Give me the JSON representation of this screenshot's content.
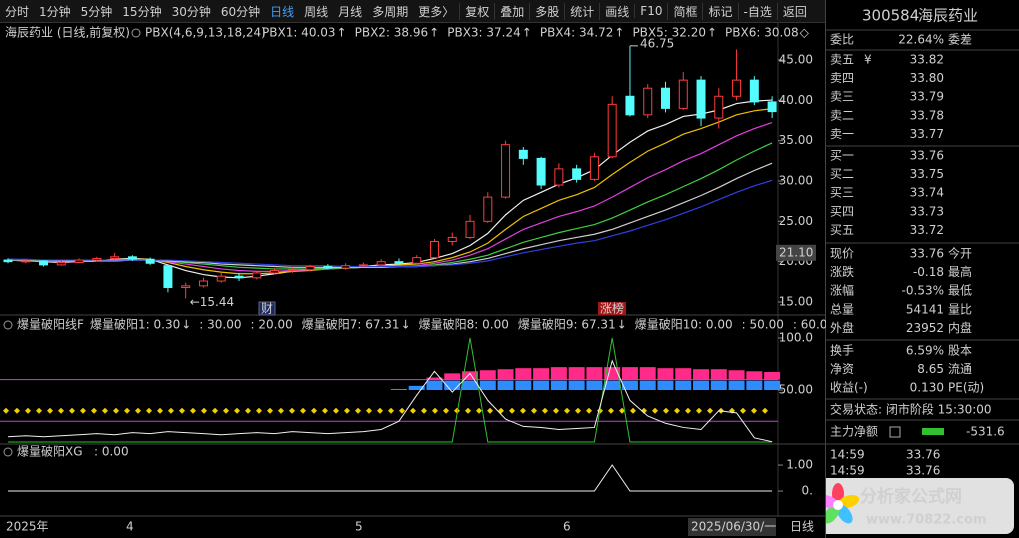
{
  "toolbar": {
    "left": [
      "分时",
      "1分钟",
      "5分钟",
      "15分钟",
      "30分钟",
      "60分钟",
      "日线",
      "周线",
      "月线",
      "多周期",
      "更多〉"
    ],
    "active": 6,
    "right": [
      "复权",
      "叠加",
      "多股",
      "统计",
      "画线",
      "F10",
      "简框",
      "标记",
      "-自选",
      "返回"
    ]
  },
  "main": {
    "title": "海辰药业 (日线,前复权)",
    "indicator": "PBX(4,6,9,13,18,24)",
    "legend": [
      {
        "text": "PBX1: 40.03",
        "arrow": "↑",
        "color": "#f0f0f0"
      },
      {
        "text": "PBX2: 38.96",
        "arrow": "↑",
        "color": "#f0c000"
      },
      {
        "text": "PBX3: 37.24",
        "arrow": "↑",
        "color": "#e040e0"
      },
      {
        "text": "PBX4: 34.72",
        "arrow": "↑",
        "color": "#40d040"
      },
      {
        "text": "PBX5: 32.20",
        "arrow": "↑",
        "color": "#d0d0d0"
      },
      {
        "text": "PBX6: 30.08",
        "arrow": "◇",
        "color": "#4050ff"
      }
    ],
    "ylim": [
      13.76,
      46.98
    ],
    "yticks": [
      {
        "value": 45,
        "label": "45.00"
      },
      {
        "value": 40,
        "label": "40.00"
      },
      {
        "value": 35,
        "label": "35.00"
      },
      {
        "value": 30,
        "label": "30.00"
      },
      {
        "value": 25,
        "label": "25.00"
      },
      {
        "value": 20,
        "label": "20.00"
      },
      {
        "value": 15,
        "label": "15.00"
      }
    ],
    "crosshair": {
      "value": 21.1,
      "label": "21.10"
    },
    "up_color": "#ff3c3c",
    "down_color": "#54fcfc",
    "candles": [
      [
        20.2,
        20.0,
        20.4,
        19.8
      ],
      [
        20.0,
        20.1,
        20.3,
        19.8
      ],
      [
        20.1,
        19.6,
        20.2,
        19.4
      ],
      [
        19.6,
        19.9,
        20.1,
        19.5
      ],
      [
        19.9,
        20.2,
        20.4,
        19.8
      ],
      [
        20.2,
        20.4,
        20.6,
        20.0
      ],
      [
        20.4,
        20.6,
        21.1,
        20.2
      ],
      [
        20.6,
        20.3,
        20.8,
        20.1
      ],
      [
        20.3,
        19.8,
        20.5,
        19.6
      ],
      [
        19.5,
        16.8,
        19.6,
        16.2
      ],
      [
        16.8,
        17.0,
        17.4,
        15.44
      ],
      [
        17.0,
        17.6,
        18.0,
        16.8
      ],
      [
        17.6,
        18.2,
        18.6,
        17.4
      ],
      [
        18.2,
        18.0,
        18.6,
        17.6
      ],
      [
        18.0,
        18.6,
        18.9,
        17.8
      ],
      [
        18.6,
        18.9,
        19.2,
        18.4
      ],
      [
        18.9,
        19.0,
        19.4,
        18.6
      ],
      [
        19.0,
        19.4,
        19.6,
        18.8
      ],
      [
        19.4,
        19.2,
        19.7,
        19.0
      ],
      [
        19.2,
        19.5,
        19.8,
        19.0
      ],
      [
        19.5,
        19.6,
        19.9,
        19.3
      ],
      [
        19.6,
        20.0,
        20.3,
        19.4
      ],
      [
        20.0,
        19.8,
        20.4,
        19.6
      ],
      [
        19.8,
        20.5,
        20.8,
        19.7
      ],
      [
        20.5,
        22.5,
        22.8,
        20.4
      ],
      [
        22.5,
        23.0,
        23.6,
        22.0
      ],
      [
        23.0,
        25.0,
        25.8,
        22.8
      ],
      [
        25.0,
        28.0,
        28.6,
        24.8
      ],
      [
        28.0,
        34.5,
        35.0,
        27.8
      ],
      [
        33.8,
        32.8,
        34.2,
        32.0
      ],
      [
        32.8,
        29.5,
        33.0,
        29.0
      ],
      [
        29.5,
        31.5,
        32.2,
        29.2
      ],
      [
        31.5,
        30.2,
        32.0,
        29.8
      ],
      [
        30.2,
        33.0,
        33.5,
        30.0
      ],
      [
        33.0,
        39.5,
        40.5,
        32.8
      ],
      [
        40.5,
        38.2,
        46.75,
        38.0
      ],
      [
        38.2,
        41.5,
        42.0,
        37.8
      ],
      [
        41.5,
        39.0,
        42.3,
        38.5
      ],
      [
        39.0,
        42.5,
        43.5,
        38.8
      ],
      [
        42.5,
        37.8,
        43.0,
        36.8
      ],
      [
        37.8,
        40.5,
        41.5,
        36.5
      ],
      [
        40.5,
        42.5,
        46.3,
        40.0
      ],
      [
        42.5,
        39.8,
        43.0,
        39.4
      ],
      [
        39.8,
        38.6,
        40.5,
        37.8
      ]
    ],
    "lines": [
      {
        "color": "#f0f0f0",
        "values": [
          20.2,
          20.1,
          20.0,
          19.9,
          20.0,
          20.1,
          20.3,
          20.4,
          20.3,
          19.6,
          18.9,
          18.4,
          18.1,
          18.0,
          18.2,
          18.5,
          18.8,
          19.0,
          19.2,
          19.3,
          19.4,
          19.6,
          19.7,
          19.9,
          20.4,
          21.0,
          22.0,
          23.5,
          25.8,
          27.6,
          28.6,
          29.6,
          30.4,
          31.4,
          33.2,
          34.8,
          36.2,
          37.0,
          38.0,
          38.3,
          38.8,
          39.6,
          39.9,
          40.03
        ]
      },
      {
        "color": "#f0c000",
        "values": [
          20.2,
          20.1,
          20.1,
          20.0,
          20.0,
          20.1,
          20.2,
          20.3,
          20.3,
          19.9,
          19.4,
          19.0,
          18.7,
          18.5,
          18.5,
          18.6,
          18.8,
          18.9,
          19.1,
          19.2,
          19.3,
          19.4,
          19.6,
          19.7,
          20.0,
          20.5,
          21.2,
          22.3,
          24.0,
          25.6,
          26.6,
          27.6,
          28.3,
          29.2,
          30.8,
          32.3,
          33.7,
          34.7,
          35.8,
          36.5,
          37.3,
          38.2,
          38.7,
          38.96
        ]
      },
      {
        "color": "#e040e0",
        "values": [
          20.2,
          20.1,
          20.1,
          20.0,
          20.0,
          20.1,
          20.2,
          20.2,
          20.2,
          20.0,
          19.7,
          19.4,
          19.1,
          18.9,
          18.8,
          18.8,
          18.9,
          19.0,
          19.1,
          19.2,
          19.3,
          19.3,
          19.4,
          19.5,
          19.8,
          20.2,
          20.8,
          21.6,
          22.8,
          24.0,
          24.8,
          25.6,
          26.2,
          26.9,
          28.0,
          29.2,
          30.4,
          31.4,
          32.5,
          33.4,
          34.5,
          35.6,
          36.5,
          37.24
        ]
      },
      {
        "color": "#40d040",
        "values": [
          20.2,
          20.2,
          20.1,
          20.1,
          20.0,
          20.1,
          20.1,
          20.2,
          20.2,
          20.1,
          19.9,
          19.7,
          19.5,
          19.3,
          19.2,
          19.1,
          19.1,
          19.1,
          19.2,
          19.2,
          19.3,
          19.3,
          19.4,
          19.4,
          19.6,
          19.9,
          20.3,
          20.8,
          21.6,
          22.4,
          23.0,
          23.6,
          24.1,
          24.6,
          25.4,
          26.4,
          27.4,
          28.3,
          29.3,
          30.3,
          31.4,
          32.6,
          33.7,
          34.72
        ]
      },
      {
        "color": "#d0d0d0",
        "values": [
          20.3,
          20.2,
          20.2,
          20.1,
          20.1,
          20.1,
          20.1,
          20.2,
          20.2,
          20.1,
          20.0,
          19.9,
          19.7,
          19.6,
          19.5,
          19.4,
          19.3,
          19.3,
          19.3,
          19.3,
          19.3,
          19.3,
          19.4,
          19.4,
          19.5,
          19.7,
          20.0,
          20.4,
          21.0,
          21.6,
          22.1,
          22.6,
          23.0,
          23.4,
          24.0,
          24.8,
          25.6,
          26.4,
          27.3,
          28.2,
          29.2,
          30.3,
          31.3,
          32.2
        ]
      },
      {
        "color": "#3040e0",
        "values": [
          20.3,
          20.3,
          20.2,
          20.2,
          20.2,
          20.2,
          20.2,
          20.2,
          20.2,
          20.2,
          20.1,
          20.0,
          19.9,
          19.8,
          19.7,
          19.6,
          19.5,
          19.5,
          19.5,
          19.4,
          19.4,
          19.4,
          19.4,
          19.4,
          19.5,
          19.6,
          19.8,
          20.1,
          20.6,
          21.1,
          21.5,
          21.9,
          22.3,
          22.6,
          23.2,
          23.8,
          24.5,
          25.2,
          26.0,
          26.8,
          27.7,
          28.6,
          29.4,
          30.08
        ]
      }
    ],
    "high_label": "46.75",
    "low_label": "←15.44",
    "markers": [
      "财",
      "涨榜"
    ]
  },
  "panel2": {
    "name": "爆量破阳线F",
    "legend": [
      {
        "text": "爆量破阳1: 0.30",
        "arrow": "↓",
        "color": "#f0f0f0"
      },
      {
        "text": ": 30.00",
        "color": "#f0c000"
      },
      {
        "text": ": 20.00",
        "color": "#e040e0"
      },
      {
        "text": "爆量破阳7: 67.31",
        "arrow": "↓",
        "color": "#40d040"
      },
      {
        "text": "爆量破阳8: 0.00",
        "color": "#3050ff"
      },
      {
        "text": "爆量破阳9: 67.31",
        "arrow": "↓",
        "color": "#ff3090"
      },
      {
        "text": "爆量破阳10: 0.00",
        "color": "#f0c000"
      },
      {
        "text": ": 50.00",
        "color": "#f0c000"
      },
      {
        "text": ": 60.00",
        "color": "#e040e0"
      }
    ],
    "ylim": [
      0,
      107.7
    ],
    "yticks": [
      {
        "value": 100,
        "label": "100.0"
      },
      {
        "value": 50,
        "label": "50.00"
      }
    ],
    "levels": {
      "diamonds": 30,
      "lower": 20,
      "blue_base": 50,
      "pink_base": 60
    },
    "line": [
      5,
      6,
      5,
      6,
      7,
      8,
      7,
      9,
      8,
      10,
      9,
      8,
      7,
      8,
      9,
      8,
      10,
      9,
      8,
      9,
      10,
      12,
      20,
      45,
      68,
      48,
      66,
      40,
      22,
      15,
      14,
      12,
      13,
      14,
      78,
      40,
      25,
      18,
      14,
      12,
      30,
      28,
      4,
      0.3
    ],
    "pink": [
      null,
      null,
      null,
      null,
      null,
      null,
      null,
      null,
      null,
      null,
      null,
      null,
      null,
      null,
      null,
      null,
      null,
      null,
      null,
      null,
      null,
      null,
      null,
      null,
      62,
      66,
      68,
      69,
      70,
      71,
      71,
      72,
      72,
      72,
      72,
      72,
      72,
      71,
      71,
      70,
      70,
      69,
      68,
      67.31
    ],
    "blue": [
      null,
      null,
      null,
      null,
      null,
      null,
      null,
      null,
      null,
      null,
      null,
      null,
      null,
      null,
      null,
      null,
      null,
      null,
      null,
      null,
      null,
      null,
      51,
      54,
      59,
      59,
      59,
      59,
      59,
      59,
      59,
      59,
      59,
      59,
      59,
      59,
      59,
      59,
      59,
      59,
      59,
      59,
      59,
      59
    ],
    "spikes": [
      0,
      0,
      0,
      0,
      0,
      0,
      0,
      0,
      0,
      0,
      0,
      0,
      0,
      0,
      0,
      0,
      0,
      0,
      0,
      0,
      0,
      0,
      0,
      0,
      0,
      0,
      100,
      0,
      0,
      0,
      0,
      0,
      0,
      0,
      100,
      0,
      0,
      0,
      0,
      0,
      0,
      0,
      0,
      0
    ]
  },
  "panel3": {
    "name": "爆量破阳XG",
    "value": ": 0.00",
    "ylim": [
      -0.92,
      1.27
    ],
    "yticks": [
      {
        "value": 1,
        "label": "1.00"
      },
      {
        "value": 0,
        "label": "0."
      }
    ],
    "values": [
      0,
      0,
      0,
      0,
      0,
      0,
      0,
      0,
      0,
      0,
      0,
      0,
      0,
      0,
      0,
      0,
      0,
      0,
      0,
      0,
      0,
      0,
      0,
      0,
      0,
      0,
      0,
      0,
      0,
      0,
      0,
      0,
      0,
      0,
      1,
      0,
      0,
      0,
      0,
      0,
      0,
      0,
      0,
      0
    ]
  },
  "time_axis": [
    "2025年",
    "4",
    "5",
    "6",
    "2025/06/30/一",
    "日线"
  ],
  "quote": {
    "code": "300584",
    "name": "海辰药业",
    "ratio": {
      "label": "委比",
      "value": "22.64%",
      "color": "#ff4040",
      "extra": "委差"
    },
    "book_color": "#30d030",
    "book": [
      {
        "label": "卖五",
        "note": "¥",
        "value": "33.82"
      },
      {
        "label": "卖四",
        "value": "33.80"
      },
      {
        "label": "卖三",
        "value": "33.79"
      },
      {
        "label": "卖二",
        "value": "33.78"
      },
      {
        "label": "卖一",
        "value": "33.77"
      },
      {
        "label": "买一",
        "value": "33.76"
      },
      {
        "label": "买二",
        "value": "33.75"
      },
      {
        "label": "买三",
        "value": "33.74"
      },
      {
        "label": "买四",
        "value": "33.73"
      },
      {
        "label": "买五",
        "value": "33.72"
      }
    ],
    "stats": [
      {
        "label": "现价",
        "value": "33.76",
        "color": "#30d030",
        "extra": "今开"
      },
      {
        "label": "涨跌",
        "value": "-0.18",
        "color": "#30d030",
        "extra": "最高"
      },
      {
        "label": "涨幅",
        "value": "-0.53%",
        "color": "#30d030",
        "extra": "最低"
      },
      {
        "label": "总量",
        "value": "54141",
        "color": "#f0d000",
        "extra": "量比"
      },
      {
        "label": "外盘",
        "value": "23952",
        "color": "#ff4040",
        "extra": "内盘"
      },
      {
        "label": "换手",
        "value": "6.59%",
        "color": "#e0e0e0",
        "extra": "股本"
      },
      {
        "label": "净资",
        "value": "8.65",
        "color": "#e0e0e0",
        "extra": "流通"
      },
      {
        "label": "收益(-)",
        "value": "0.130",
        "color": "#e0e0e0",
        "extra": "PE(动)"
      }
    ],
    "status": "交易状态: 闭市阶段 15:30:00",
    "flow_label": "主力净额",
    "flow_value": "-531.6",
    "ticks": [
      {
        "time": "14:59",
        "price": "33.76"
      },
      {
        "time": "14:59",
        "price": "33.76"
      }
    ]
  },
  "logo": {
    "name": "分析家公式网",
    "url": "www.70822.com"
  }
}
